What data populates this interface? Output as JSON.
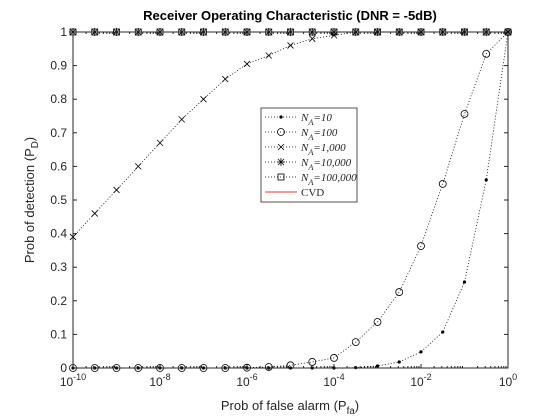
{
  "chart_data": {
    "type": "line",
    "title": "Receiver Operating Characteristic (DNR = -5dB)",
    "xlabel": "Prob of false alarm (P_fa)",
    "ylabel": "Prob of detection (P_D)",
    "x": [
      1e-10,
      3.1623e-10,
      1e-09,
      3.1623e-09,
      1e-08,
      3.1623e-08,
      1e-07,
      3.1623e-07,
      1e-06,
      3.1623e-06,
      1e-05,
      3.1623e-05,
      0.0001,
      0.00031623,
      0.001,
      0.0031623,
      0.01,
      0.031623,
      0.1,
      0.31623,
      1
    ],
    "xscale": "log",
    "xlim": [
      1e-10,
      1
    ],
    "xticks": [
      {
        "value": 1e-10,
        "label": "10^-10"
      },
      {
        "value": 1e-08,
        "label": "10^-8"
      },
      {
        "value": 1e-06,
        "label": "10^-6"
      },
      {
        "value": 0.0001,
        "label": "10^-4"
      },
      {
        "value": 0.01,
        "label": "10^-2"
      },
      {
        "value": 1,
        "label": "10^0"
      }
    ],
    "ylim": [
      0,
      1
    ],
    "yticks": [
      0,
      0.1,
      0.2,
      0.3,
      0.4,
      0.5,
      0.6,
      0.7,
      0.8,
      0.9,
      1
    ],
    "grid": false,
    "legend": "center",
    "series": [
      {
        "name": "N_A=10",
        "color": "#000000",
        "marker": ".",
        "line_style": "dotted",
        "values": [
          0,
          0,
          0,
          0,
          0,
          0,
          0,
          0,
          0,
          0,
          0,
          0,
          0,
          0.001,
          0.006,
          0.018,
          0.048,
          0.107,
          0.256,
          0.56,
          1
        ]
      },
      {
        "name": "N_A=100",
        "color": "#000000",
        "marker": "o",
        "line_style": "dotted",
        "values": [
          0,
          0,
          0,
          0,
          0,
          0,
          0,
          0,
          0.001,
          0.003,
          0.008,
          0.018,
          0.03,
          0.077,
          0.137,
          0.226,
          0.363,
          0.548,
          0.756,
          0.935,
          1
        ]
      },
      {
        "name": "N_A=1,000",
        "color": "#000000",
        "marker": "x",
        "line_style": "dotted",
        "values": [
          0.39,
          0.46,
          0.53,
          0.6,
          0.67,
          0.74,
          0.8,
          0.86,
          0.905,
          0.93,
          0.96,
          0.98,
          0.99,
          1,
          1,
          1,
          1,
          1,
          1,
          1,
          1
        ]
      },
      {
        "name": "N_A=10,000",
        "color": "#000000",
        "marker": "*",
        "line_style": "dotted",
        "values": [
          1,
          1,
          1,
          1,
          1,
          1,
          1,
          1,
          1,
          1,
          1,
          1,
          1,
          1,
          1,
          1,
          1,
          1,
          1,
          1,
          1
        ]
      },
      {
        "name": "N_A=100,000",
        "color": "#000000",
        "marker": "s",
        "line_style": "dotted",
        "values": [
          1,
          1,
          1,
          1,
          1,
          1,
          1,
          1,
          1,
          1,
          1,
          1,
          1,
          1,
          1,
          1,
          1,
          1,
          1,
          1,
          1
        ]
      },
      {
        "name": "CVD",
        "color": "#c00000",
        "marker": "none",
        "line_style": "solid",
        "values": [
          1,
          1,
          1,
          1,
          1,
          1,
          1,
          1,
          1,
          1,
          1,
          1,
          1,
          1,
          1,
          1,
          1,
          1,
          1,
          1,
          1
        ]
      }
    ]
  }
}
